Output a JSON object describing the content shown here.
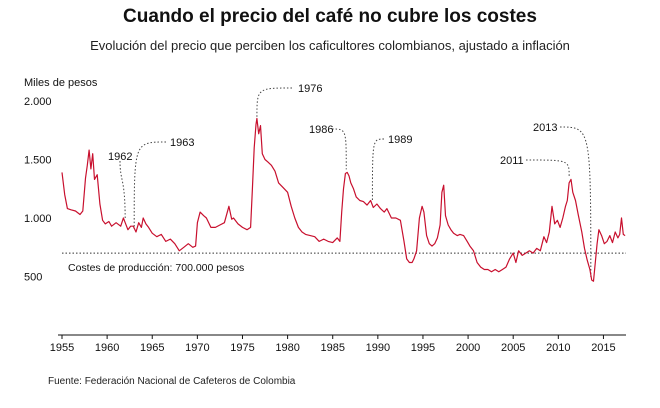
{
  "title": "Cuando el precio del café no cubre los costes",
  "subtitle": "Evolución del precio que perciben los caficultores colombianos, ajustado a inflación",
  "source": "Fuente: Federación Nacional de Cafeteros de Colombia",
  "chart_data": {
    "type": "line",
    "ylabel": "Miles de pesos",
    "ylim": [
      0,
      2000
    ],
    "xlim": [
      1955,
      2017.5
    ],
    "y_ticks": [
      {
        "value": 500,
        "label": "500"
      },
      {
        "value": 1000,
        "label": "1.000"
      },
      {
        "value": 1500,
        "label": "1.500"
      },
      {
        "value": 2000,
        "label": "2.000"
      }
    ],
    "x_ticks": [
      1955,
      1960,
      1965,
      1970,
      1975,
      1980,
      1985,
      1990,
      1995,
      2000,
      2005,
      2010,
      2015
    ],
    "line_color": "#c8102e",
    "reference_line": {
      "value": 700,
      "label": "Costes de producción: 700.000 pesos"
    },
    "annotations": [
      {
        "label": "1962",
        "x": 1962,
        "y": 960
      },
      {
        "label": "1963",
        "x": 1963,
        "y": 880
      },
      {
        "label": "1976",
        "x": 1976.6,
        "y": 1830
      },
      {
        "label": "1986",
        "x": 1986.5,
        "y": 1390
      },
      {
        "label": "1989",
        "x": 1989.4,
        "y": 1110
      },
      {
        "label": "2011",
        "x": 2011.2,
        "y": 1330
      },
      {
        "label": "2013",
        "x": 2013.6,
        "y": 470
      }
    ],
    "series": [
      {
        "values": [
          [
            1955.0,
            1390
          ],
          [
            1955.3,
            1200
          ],
          [
            1955.6,
            1080
          ],
          [
            1956.0,
            1070
          ],
          [
            1956.5,
            1060
          ],
          [
            1957.0,
            1030
          ],
          [
            1957.3,
            1060
          ],
          [
            1957.6,
            1340
          ],
          [
            1957.8,
            1450
          ],
          [
            1958.0,
            1580
          ],
          [
            1958.2,
            1420
          ],
          [
            1958.4,
            1550
          ],
          [
            1958.6,
            1330
          ],
          [
            1958.9,
            1370
          ],
          [
            1959.2,
            1120
          ],
          [
            1959.5,
            980
          ],
          [
            1959.8,
            950
          ],
          [
            1960.2,
            970
          ],
          [
            1960.5,
            930
          ],
          [
            1961.0,
            960
          ],
          [
            1961.5,
            930
          ],
          [
            1961.8,
            1000
          ],
          [
            1962.0,
            960
          ],
          [
            1962.3,
            900
          ],
          [
            1962.6,
            930
          ],
          [
            1962.9,
            930
          ],
          [
            1963.2,
            880
          ],
          [
            1963.5,
            960
          ],
          [
            1963.8,
            920
          ],
          [
            1964.0,
            1000
          ],
          [
            1964.3,
            950
          ],
          [
            1964.6,
            920
          ],
          [
            1965.0,
            870
          ],
          [
            1965.5,
            840
          ],
          [
            1966.0,
            860
          ],
          [
            1966.5,
            800
          ],
          [
            1967.0,
            820
          ],
          [
            1967.5,
            780
          ],
          [
            1968.0,
            720
          ],
          [
            1968.5,
            750
          ],
          [
            1969.0,
            780
          ],
          [
            1969.5,
            750
          ],
          [
            1969.8,
            760
          ],
          [
            1970.0,
            960
          ],
          [
            1970.3,
            1050
          ],
          [
            1970.7,
            1020
          ],
          [
            1971.0,
            1000
          ],
          [
            1971.5,
            920
          ],
          [
            1972.0,
            920
          ],
          [
            1972.5,
            940
          ],
          [
            1973.0,
            960
          ],
          [
            1973.5,
            1100
          ],
          [
            1973.8,
            990
          ],
          [
            1974.0,
            1000
          ],
          [
            1974.5,
            950
          ],
          [
            1975.0,
            920
          ],
          [
            1975.5,
            900
          ],
          [
            1975.9,
            920
          ],
          [
            1976.1,
            1250
          ],
          [
            1976.3,
            1600
          ],
          [
            1976.5,
            1800
          ],
          [
            1976.6,
            1850
          ],
          [
            1976.8,
            1720
          ],
          [
            1977.0,
            1790
          ],
          [
            1977.2,
            1550
          ],
          [
            1977.5,
            1500
          ],
          [
            1977.8,
            1480
          ],
          [
            1978.2,
            1450
          ],
          [
            1978.6,
            1400
          ],
          [
            1979.0,
            1300
          ],
          [
            1979.5,
            1260
          ],
          [
            1980.0,
            1220
          ],
          [
            1980.4,
            1100
          ],
          [
            1980.8,
            1000
          ],
          [
            1981.2,
            920
          ],
          [
            1981.6,
            880
          ],
          [
            1982.0,
            860
          ],
          [
            1982.5,
            850
          ],
          [
            1983.0,
            840
          ],
          [
            1983.5,
            800
          ],
          [
            1984.0,
            820
          ],
          [
            1984.5,
            800
          ],
          [
            1985.0,
            790
          ],
          [
            1985.5,
            830
          ],
          [
            1985.8,
            800
          ],
          [
            1986.0,
            1050
          ],
          [
            1986.2,
            1250
          ],
          [
            1986.4,
            1380
          ],
          [
            1986.6,
            1390
          ],
          [
            1986.8,
            1360
          ],
          [
            1987.0,
            1300
          ],
          [
            1987.3,
            1250
          ],
          [
            1987.6,
            1180
          ],
          [
            1988.0,
            1150
          ],
          [
            1988.4,
            1140
          ],
          [
            1988.8,
            1110
          ],
          [
            1989.2,
            1150
          ],
          [
            1989.5,
            1090
          ],
          [
            1989.9,
            1120
          ],
          [
            1990.3,
            1080
          ],
          [
            1990.7,
            1050
          ],
          [
            1991.0,
            1080
          ],
          [
            1991.5,
            1000
          ],
          [
            1992.0,
            1000
          ],
          [
            1992.5,
            980
          ],
          [
            1992.9,
            800
          ],
          [
            1993.2,
            650
          ],
          [
            1993.5,
            620
          ],
          [
            1993.8,
            620
          ],
          [
            1994.0,
            650
          ],
          [
            1994.3,
            720
          ],
          [
            1994.6,
            1000
          ],
          [
            1994.9,
            1100
          ],
          [
            1995.1,
            1050
          ],
          [
            1995.4,
            850
          ],
          [
            1995.7,
            780
          ],
          [
            1996.0,
            760
          ],
          [
            1996.3,
            780
          ],
          [
            1996.6,
            830
          ],
          [
            1996.9,
            940
          ],
          [
            1997.1,
            1220
          ],
          [
            1997.3,
            1280
          ],
          [
            1997.5,
            1020
          ],
          [
            1997.8,
            940
          ],
          [
            1998.1,
            900
          ],
          [
            1998.4,
            870
          ],
          [
            1998.8,
            850
          ],
          [
            1999.1,
            860
          ],
          [
            1999.5,
            850
          ],
          [
            1999.9,
            800
          ],
          [
            2000.2,
            760
          ],
          [
            2000.6,
            720
          ],
          [
            2001.0,
            620
          ],
          [
            2001.4,
            580
          ],
          [
            2001.8,
            560
          ],
          [
            2002.2,
            560
          ],
          [
            2002.6,
            540
          ],
          [
            2003.0,
            560
          ],
          [
            2003.4,
            540
          ],
          [
            2003.8,
            560
          ],
          [
            2004.2,
            580
          ],
          [
            2004.6,
            650
          ],
          [
            2005.0,
            700
          ],
          [
            2005.3,
            620
          ],
          [
            2005.6,
            720
          ],
          [
            2006.0,
            680
          ],
          [
            2006.4,
            700
          ],
          [
            2006.8,
            720
          ],
          [
            2007.2,
            700
          ],
          [
            2007.6,
            740
          ],
          [
            2008.0,
            720
          ],
          [
            2008.4,
            840
          ],
          [
            2008.7,
            790
          ],
          [
            2009.0,
            880
          ],
          [
            2009.3,
            1100
          ],
          [
            2009.6,
            950
          ],
          [
            2009.9,
            980
          ],
          [
            2010.2,
            920
          ],
          [
            2010.5,
            1000
          ],
          [
            2010.8,
            1100
          ],
          [
            2011.0,
            1150
          ],
          [
            2011.2,
            1300
          ],
          [
            2011.4,
            1330
          ],
          [
            2011.6,
            1220
          ],
          [
            2011.9,
            1150
          ],
          [
            2012.2,
            1030
          ],
          [
            2012.6,
            880
          ],
          [
            2012.9,
            740
          ],
          [
            2013.2,
            640
          ],
          [
            2013.5,
            560
          ],
          [
            2013.7,
            470
          ],
          [
            2013.9,
            460
          ],
          [
            2014.1,
            620
          ],
          [
            2014.3,
            780
          ],
          [
            2014.5,
            900
          ],
          [
            2014.8,
            850
          ],
          [
            2015.1,
            780
          ],
          [
            2015.4,
            800
          ],
          [
            2015.7,
            850
          ],
          [
            2016.0,
            790
          ],
          [
            2016.3,
            880
          ],
          [
            2016.6,
            830
          ],
          [
            2016.8,
            860
          ],
          [
            2017.0,
            1000
          ],
          [
            2017.2,
            860
          ],
          [
            2017.4,
            850
          ]
        ]
      }
    ]
  }
}
